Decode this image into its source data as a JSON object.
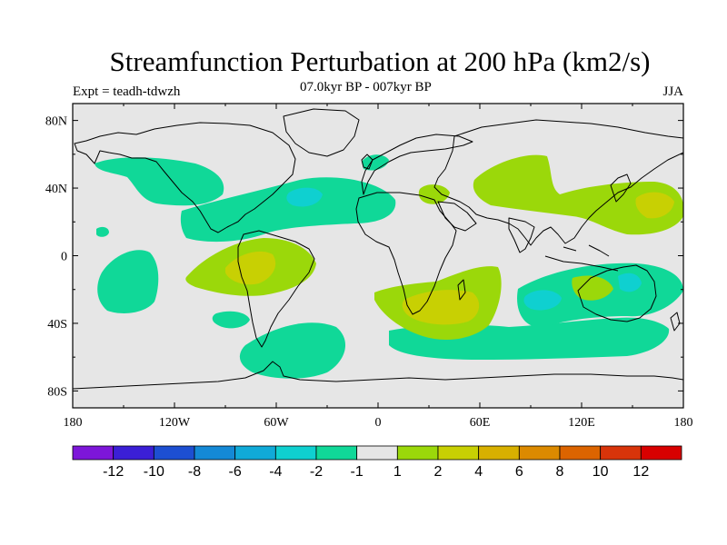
{
  "title": "Streamfunction Perturbation at 200 hPa (km2/s)",
  "subtitle": "07.0kyr BP - 007kyr BP",
  "experiment": "Expt = teadh-tdwzh",
  "season": "JJA",
  "lat_labels": [
    "80N",
    "40N",
    "0",
    "40S",
    "80S"
  ],
  "lon_labels": [
    "180",
    "120W",
    "60W",
    "0",
    "60E",
    "120E",
    "180"
  ],
  "colorbar": {
    "colors": [
      "#7d16d9",
      "#3b1fd6",
      "#1d4fd2",
      "#1489d6",
      "#10aad8",
      "#0fd0d0",
      "#10d898",
      "#e6e6e6",
      "#9bd80a",
      "#c8d003",
      "#d8b000",
      "#dc8a00",
      "#dc6400",
      "#d8340a",
      "#d80000"
    ],
    "labels": [
      "-12",
      "-10",
      "-8",
      "-6",
      "-4",
      "-2",
      "-1",
      "1",
      "2",
      "4",
      "6",
      "8",
      "10",
      "12"
    ]
  },
  "colors": {
    "background": "#e6e6e6",
    "neg1": "#10d898",
    "neg2": "#0fd0d0",
    "pos1": "#9bd80a",
    "pos2": "#c8d003"
  }
}
